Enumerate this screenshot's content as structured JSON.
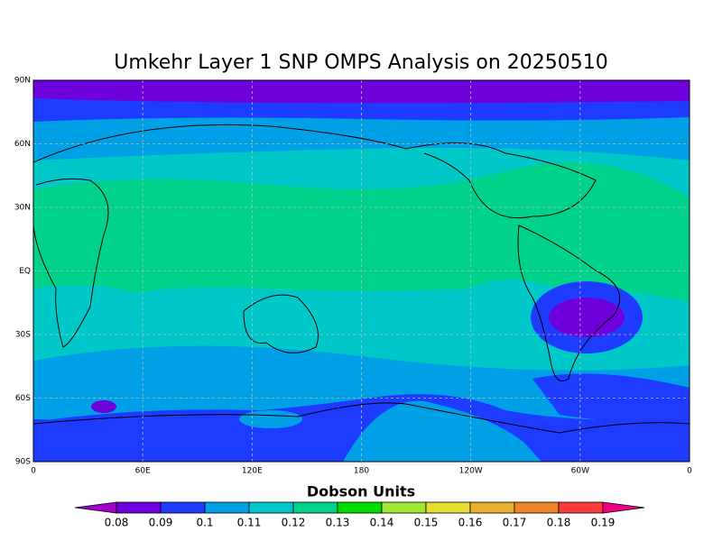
{
  "map": {
    "title": "Umkehr Layer 1 SNP OMPS Analysis on 20250510",
    "lat_labels": [
      "90N",
      "60N",
      "30N",
      "EQ",
      "30S",
      "60S",
      "90S"
    ],
    "lon_labels": [
      "0",
      "60E",
      "120E",
      "180",
      "120W",
      "60W",
      "0"
    ]
  },
  "colorbar": {
    "title": "Dobson Units",
    "levels": [
      0.08,
      0.09,
      0.1,
      0.11,
      0.12,
      0.13,
      0.14,
      0.15,
      0.16,
      0.17,
      0.18,
      0.19
    ],
    "colors": [
      "#a000c8",
      "#6e00dc",
      "#1e3cff",
      "#00a0e6",
      "#00c8c8",
      "#00d28c",
      "#00dc00",
      "#a0e632",
      "#e6dc32",
      "#e6af2d",
      "#f08228",
      "#fa3c3c",
      "#f00082"
    ]
  }
}
